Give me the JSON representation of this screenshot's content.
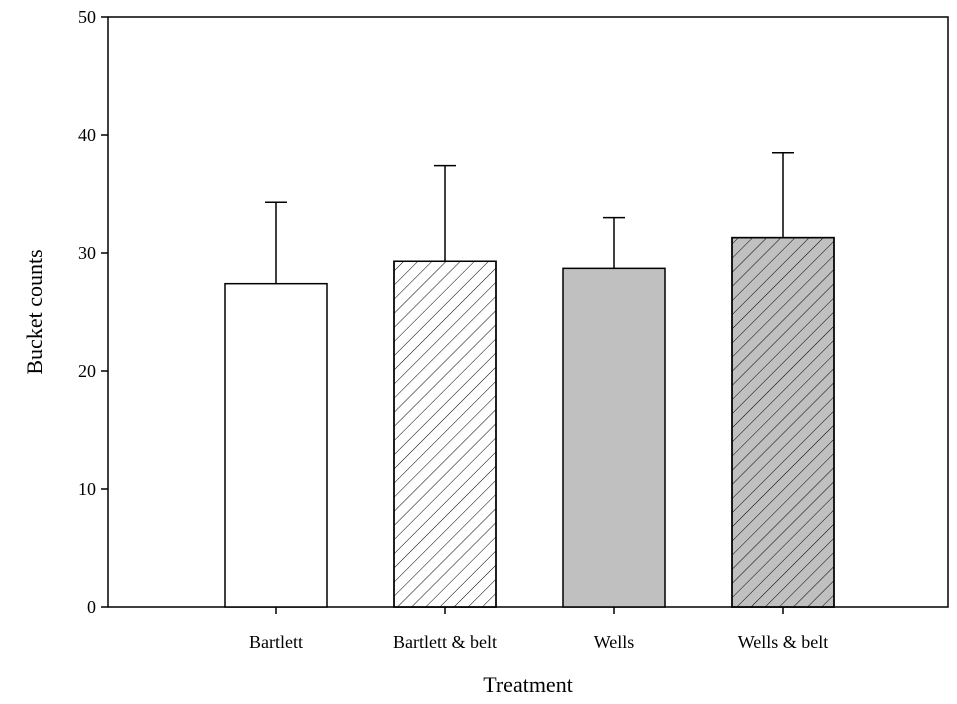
{
  "chart_data": {
    "type": "bar",
    "title": "",
    "xlabel": "Treatment",
    "ylabel": "Bucket counts",
    "ylim": [
      0,
      50
    ],
    "yticks": [
      0,
      10,
      20,
      30,
      40,
      50
    ],
    "grid": false,
    "categories": [
      "Bartlett",
      "Bartlett & belt",
      "Wells",
      "Wells & belt"
    ],
    "values": [
      27.4,
      29.3,
      28.7,
      31.3
    ],
    "error_upper": [
      34.3,
      37.4,
      33.0,
      38.5
    ],
    "bar_styles": [
      {
        "fill": "#ffffff",
        "hatch": false
      },
      {
        "fill": "#ffffff",
        "hatch": true
      },
      {
        "fill": "#c0c0c0",
        "hatch": false
      },
      {
        "fill": "#c0c0c0",
        "hatch": true
      }
    ],
    "colors": {
      "axis": "#000000",
      "gray_fill": "#c0c0c0",
      "white_fill": "#ffffff"
    }
  }
}
